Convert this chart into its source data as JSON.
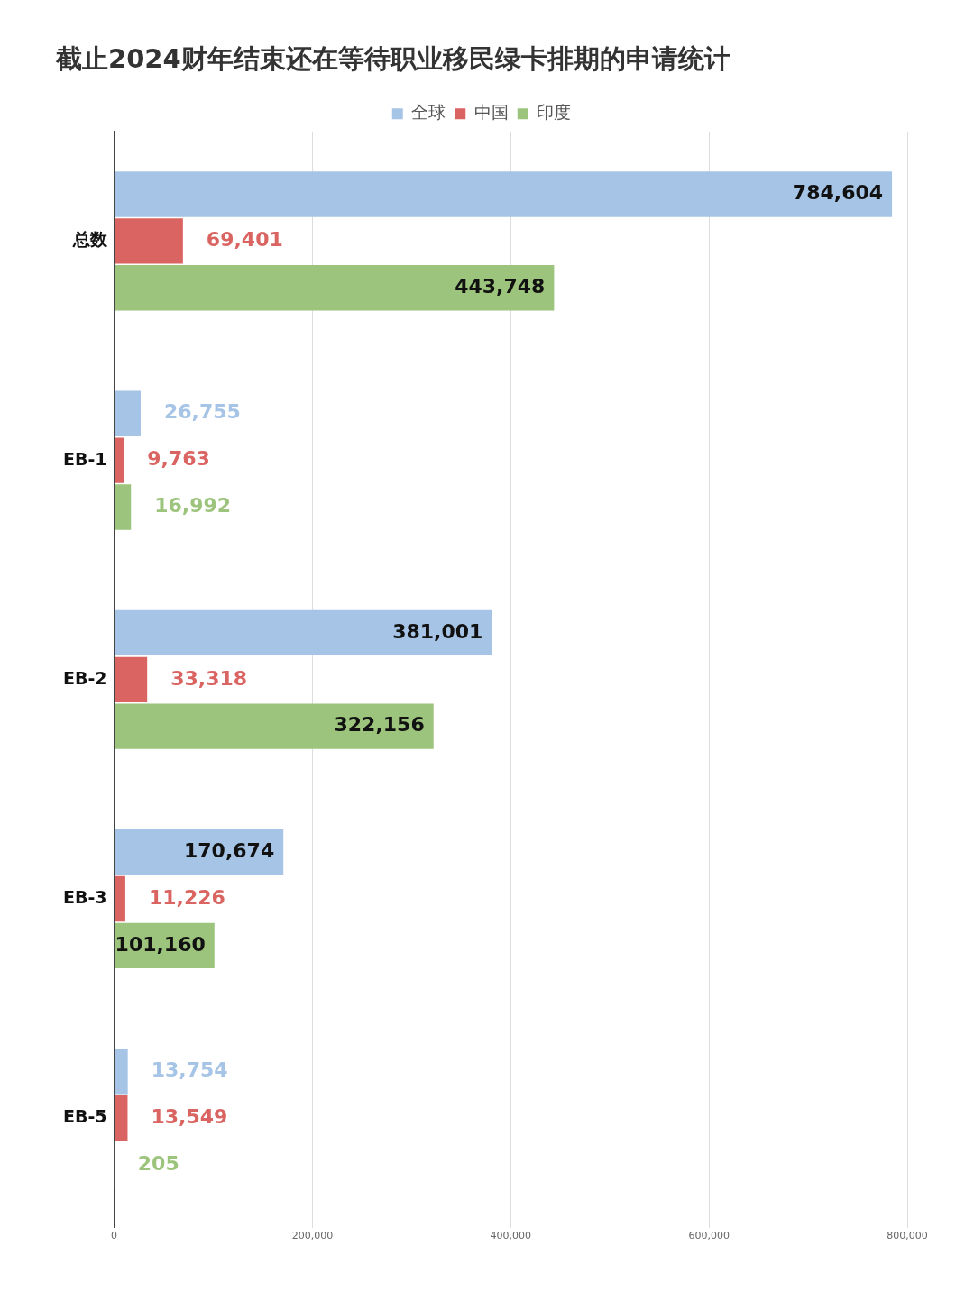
{
  "chart_data": {
    "type": "bar",
    "orientation": "horizontal",
    "title": "截止2024财年结束还在等待职业移民绿卡排期的申请统计",
    "categories": [
      "总数",
      "EB-1",
      "EB-2",
      "EB-3",
      "EB-5"
    ],
    "series": [
      {
        "name": "全球",
        "color": "#a6c4e6",
        "values": [
          784604,
          26755,
          381001,
          170674,
          13754
        ],
        "value_labels": [
          "784,604",
          "26,755",
          "381,001",
          "170,674",
          "13,754"
        ]
      },
      {
        "name": "中国",
        "color": "#da6461",
        "values": [
          69401,
          9763,
          33318,
          11226,
          13549
        ],
        "value_labels": [
          "69,401",
          "9,763",
          "33,318",
          "11,226",
          "13,549"
        ]
      },
      {
        "name": "印度",
        "color": "#9dc47c",
        "values": [
          443748,
          16992,
          322156,
          101160,
          205
        ],
        "value_labels": [
          "443,748",
          "16,992",
          "322,156",
          "101,160",
          "205"
        ]
      }
    ],
    "xlim": [
      0,
      800000
    ],
    "xticks": [
      {
        "value": 0,
        "label": "0"
      },
      {
        "value": 200000,
        "label": "200,000"
      },
      {
        "value": 400000,
        "label": "400,000"
      },
      {
        "value": 600000,
        "label": "600,000"
      },
      {
        "value": 800000,
        "label": "800,000"
      }
    ],
    "grid": "x",
    "legend": "top"
  }
}
